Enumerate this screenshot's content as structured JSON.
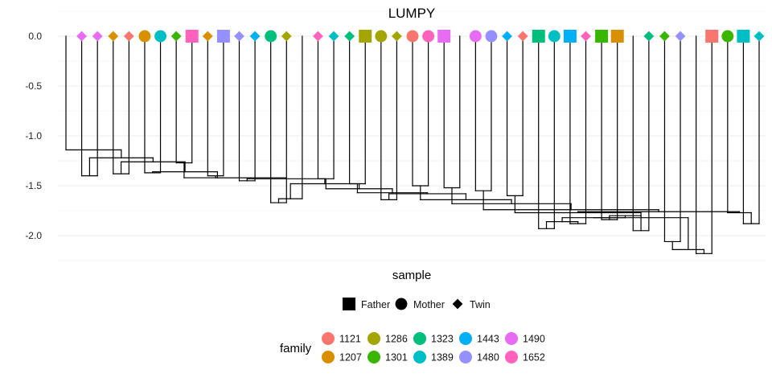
{
  "chart_data": {
    "type": "dendrogram",
    "title": "LUMPY",
    "xlabel": "sample",
    "ylabel": "",
    "ylim": [
      -2.25,
      0.05
    ],
    "yticks": [
      0.0,
      -0.5,
      -1.0,
      -1.5,
      -2.0
    ],
    "ytick_labels": [
      "0.0",
      "-0.5",
      "-1.0",
      "-1.5",
      "-2.0"
    ],
    "grid": true,
    "shape_legend": {
      "entries": [
        {
          "label": "Father",
          "shape": "square"
        },
        {
          "label": "Mother",
          "shape": "circle"
        },
        {
          "label": "Twin",
          "shape": "diamond"
        }
      ]
    },
    "family_legend": {
      "title": "family",
      "entries": [
        {
          "label": "1121",
          "color": "#F8766D"
        },
        {
          "label": "1207",
          "color": "#D89000"
        },
        {
          "label": "1286",
          "color": "#A3A500"
        },
        {
          "label": "1301",
          "color": "#39B600"
        },
        {
          "label": "1323",
          "color": "#00BF7D"
        },
        {
          "label": "1389",
          "color": "#00BFC4"
        },
        {
          "label": "1443",
          "color": "#00B0F6"
        },
        {
          "label": "1480",
          "color": "#9590FF"
        },
        {
          "label": "1490",
          "color": "#E76BF3"
        },
        {
          "label": "1652",
          "color": "#FF62BC"
        }
      ]
    },
    "leaves": [
      {
        "family": null,
        "role": null
      },
      {
        "family": "1490",
        "role": "Twin"
      },
      {
        "family": "1490",
        "role": "Twin"
      },
      {
        "family": "1207",
        "role": "Twin"
      },
      {
        "family": "1121",
        "role": "Twin"
      },
      {
        "family": "1207",
        "role": "Mother"
      },
      {
        "family": "1389",
        "role": "Mother"
      },
      {
        "family": "1301",
        "role": "Twin"
      },
      {
        "family": "1652",
        "role": "Father"
      },
      {
        "family": "1207",
        "role": "Twin"
      },
      {
        "family": "1480",
        "role": "Father"
      },
      {
        "family": "1480",
        "role": "Twin"
      },
      {
        "family": "1443",
        "role": "Twin"
      },
      {
        "family": "1323",
        "role": "Mother"
      },
      {
        "family": "1286",
        "role": "Twin"
      },
      {
        "family": null,
        "role": null
      },
      {
        "family": "1652",
        "role": "Twin"
      },
      {
        "family": "1389",
        "role": "Twin"
      },
      {
        "family": "1323",
        "role": "Twin"
      },
      {
        "family": "1286",
        "role": "Father"
      },
      {
        "family": "1286",
        "role": "Mother"
      },
      {
        "family": "1286",
        "role": "Twin"
      },
      {
        "family": "1121",
        "role": "Mother"
      },
      {
        "family": "1652",
        "role": "Mother"
      },
      {
        "family": "1490",
        "role": "Father"
      },
      {
        "family": null,
        "role": null
      },
      {
        "family": "1490",
        "role": "Mother"
      },
      {
        "family": "1480",
        "role": "Mother"
      },
      {
        "family": "1443",
        "role": "Twin"
      },
      {
        "family": "1121",
        "role": "Twin"
      },
      {
        "family": "1323",
        "role": "Father"
      },
      {
        "family": "1389",
        "role": "Mother"
      },
      {
        "family": "1443",
        "role": "Father"
      },
      {
        "family": "1652",
        "role": "Twin"
      },
      {
        "family": "1301",
        "role": "Father"
      },
      {
        "family": "1207",
        "role": "Father"
      },
      {
        "family": null,
        "role": null
      },
      {
        "family": "1323",
        "role": "Twin"
      },
      {
        "family": "1301",
        "role": "Twin"
      },
      {
        "family": "1480",
        "role": "Twin"
      },
      {
        "family": null,
        "role": null
      },
      {
        "family": "1121",
        "role": "Father"
      },
      {
        "family": "1301",
        "role": "Mother"
      },
      {
        "family": "1389",
        "role": "Father"
      },
      {
        "family": "1389",
        "role": "Twin"
      }
    ],
    "merges": [
      [
        1,
        2,
        -1.4
      ],
      [
        3,
        4,
        -1.38
      ],
      [
        5,
        6,
        -1.37
      ],
      [
        7,
        8,
        -1.27
      ],
      [
        9,
        10,
        -1.4
      ],
      [
        11,
        12,
        -1.45
      ],
      [
        13,
        14,
        -1.67
      ],
      [
        -7,
        15,
        -1.63
      ],
      [
        16,
        17,
        -1.43
      ],
      [
        18,
        19,
        -1.48
      ],
      [
        20,
        21,
        -1.64
      ],
      [
        22,
        23,
        -1.5
      ],
      [
        24,
        25,
        -1.52
      ],
      [
        26,
        27,
        -1.55
      ],
      [
        28,
        29,
        -1.6
      ],
      [
        30,
        31,
        -1.93
      ],
      [
        32,
        33,
        -1.88
      ],
      [
        34,
        35,
        -1.84
      ],
      [
        36,
        37,
        -1.95
      ],
      [
        38,
        39,
        -2.06
      ],
      [
        40,
        41,
        -2.18
      ],
      [
        43,
        44,
        -1.88
      ],
      [
        42,
        -22,
        -1.77
      ],
      [
        -16,
        -17,
        -1.86
      ],
      [
        -18,
        -19,
        -1.8
      ],
      [
        -20,
        -21,
        -2.14
      ],
      [
        -24,
        -25,
        -1.82
      ],
      [
        -26,
        -27,
        -1.82
      ],
      [
        -15,
        -28,
        -1.77
      ],
      [
        -29,
        -23,
        -1.76
      ],
      [
        -14,
        -30,
        -1.74
      ],
      [
        -13,
        -31,
        -1.68
      ],
      [
        -12,
        -32,
        -1.64
      ],
      [
        -11,
        -33,
        -1.58
      ],
      [
        -10,
        -34,
        -1.57
      ],
      [
        -9,
        -35,
        -1.53
      ],
      [
        -8,
        -36,
        -1.48
      ],
      [
        -6,
        -37,
        -1.43
      ],
      [
        -5,
        -38,
        -1.42
      ],
      [
        -4,
        -39,
        -1.42
      ],
      [
        -3,
        -40,
        -1.36
      ],
      [
        -2,
        -41,
        -1.26
      ],
      [
        -1,
        -42,
        -1.22
      ],
      [
        0,
        -43,
        -1.14
      ]
    ]
  }
}
